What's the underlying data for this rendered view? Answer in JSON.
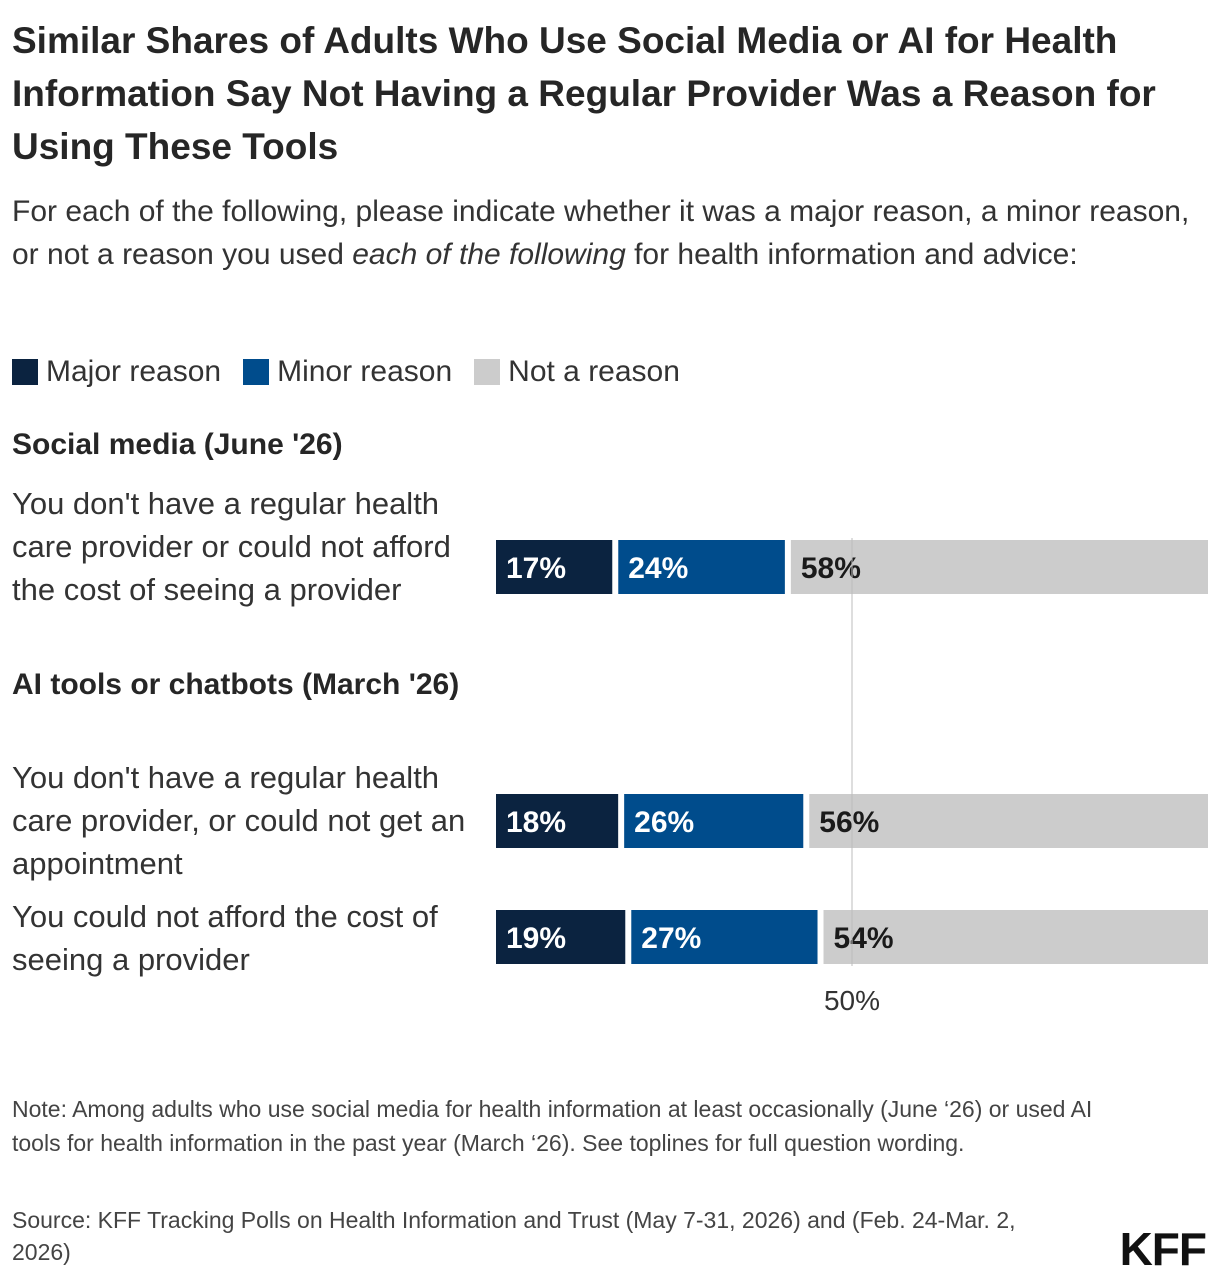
{
  "title": "Similar Shares of Adults Who Use Social Media or AI for Health Information Say Not Having a Regular Provider Was a Reason for Using These Tools",
  "subtitle": {
    "before": "For each of the following, please indicate whether it was a major reason, a minor reason, or not a reason you used ",
    "emphasis": "each of the following",
    "after": " for health information and advice:"
  },
  "legend": [
    {
      "label": "Major reason",
      "color": "#0b2340"
    },
    {
      "label": "Minor reason",
      "color": "#004c8c"
    },
    {
      "label": "Not a reason",
      "color": "#cccccc"
    }
  ],
  "groups": [
    {
      "label": "Social media (June '26)"
    },
    {
      "label": "AI tools or chatbots (March '26)"
    }
  ],
  "chart_data": {
    "type": "bar",
    "orientation": "horizontal",
    "stacked": true,
    "categories": [
      "You don't have a regular health care provider or could not afford the cost of seeing a provider",
      "You don't have a regular health care provider, or could not get an appointment",
      "You could not afford the cost of seeing a provider"
    ],
    "category_groups": [
      "Social media (June '26)",
      "AI tools or chatbots (March '26)",
      "AI tools or chatbots (March '26)"
    ],
    "series": [
      {
        "name": "Major reason",
        "color": "#0b2340",
        "values": [
          17,
          18,
          19
        ],
        "labels": [
          "17%",
          "18%",
          "19%"
        ]
      },
      {
        "name": "Minor reason",
        "color": "#004c8c",
        "values": [
          24,
          26,
          27
        ],
        "labels": [
          "24%",
          "26%",
          "27%"
        ]
      },
      {
        "name": "Not a reason",
        "color": "#cccccc",
        "values": [
          58,
          56,
          54
        ],
        "labels": [
          "58%",
          "56%",
          "54%"
        ]
      }
    ],
    "xlim": [
      0,
      100
    ],
    "reference_line": {
      "value": 50,
      "label": "50%"
    },
    "grid": false,
    "legend_position": "top-left"
  },
  "note": "Note: Among adults who use social media for health information at least occasionally (June ‘26) or used AI tools for health information in the past year (March ‘26). See toplines for full question wording.",
  "source": "Source: KFF Tracking Polls on Health Information and Trust (May 7-31, 2026) and (Feb. 24-Mar. 2, 2026)",
  "logo": "KFF"
}
